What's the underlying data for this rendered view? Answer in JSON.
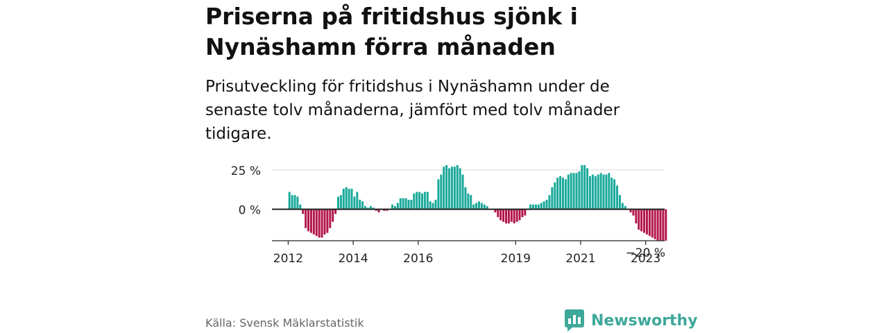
{
  "title": "Priserna på fritidshus sjönk i Nynäshamn förra månaden",
  "subtitle": "Prisutveckling för fritidshus i Nynäshamn under de senaste tolv månaderna, jämfört med tolv månader tidigare.",
  "source": "Källa: Svensk Mäklarstatistik",
  "logo": {
    "name": "Newsworthy"
  },
  "colors": {
    "positive": "#1aa99a",
    "negative": "#b3164a",
    "grid": "#d9d9d9",
    "axis": "#222222",
    "text": "#222222"
  },
  "chart_data": {
    "type": "bar",
    "ylim": [
      -20,
      28
    ],
    "ytick_values": [
      25,
      0
    ],
    "ytick_labels": [
      "25 %",
      "0 %"
    ],
    "xtick_years": [
      2012,
      2014,
      2016,
      2019,
      2021,
      2023
    ],
    "xtick_labels": [
      "2012",
      "2014",
      "2016",
      "2019",
      "2021",
      "2023"
    ],
    "last_value_label": "−20 %",
    "start": "2012-01",
    "end": "2023-07",
    "values": [
      11,
      9,
      9,
      8,
      3,
      -3,
      -12,
      -14,
      -15,
      -16,
      -17,
      -18,
      -18,
      -16,
      -15,
      -12,
      -8,
      -3,
      8,
      9,
      13,
      14,
      13,
      13,
      8,
      11,
      6,
      5,
      2,
      1,
      2,
      1,
      -1,
      -2,
      0,
      -1,
      -1,
      0,
      3,
      2,
      4,
      7,
      7,
      7,
      6,
      6,
      10,
      11,
      11,
      10,
      11,
      11,
      5,
      4,
      6,
      19,
      22,
      27,
      28,
      26,
      27,
      27,
      28,
      26,
      22,
      14,
      10,
      9,
      3,
      4,
      5,
      4,
      3,
      2,
      0,
      0,
      -2,
      -5,
      -7,
      -8,
      -9,
      -9,
      -8,
      -9,
      -8,
      -7,
      -5,
      -4,
      0,
      3,
      3,
      3,
      3,
      4,
      5,
      6,
      9,
      14,
      17,
      20,
      21,
      20,
      19,
      22,
      23,
      23,
      23,
      24,
      28,
      28,
      26,
      21,
      22,
      21,
      22,
      23,
      22,
      22,
      23,
      20,
      19,
      15,
      9,
      4,
      2,
      0,
      -2,
      -4,
      -9,
      -13,
      -14,
      -15,
      -16,
      -17,
      -18,
      -19,
      -20,
      -20,
      -20,
      -20
    ]
  }
}
